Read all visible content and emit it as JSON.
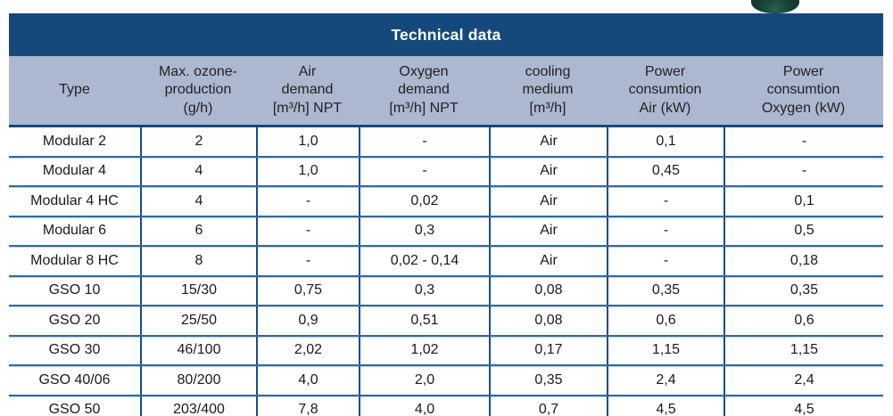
{
  "table": {
    "title": "Technical data",
    "column_headers": [
      "Type",
      "Max. ozone-\nproduction\n(g/h)",
      "Air\ndemand\n[m³/h] NPT",
      "Oxygen\ndemand\n[m³/h] NPT",
      "cooling\nmedium\n[m³/h]",
      "Power\nconsumtion\nAir (kW)",
      "Power\nconsumtion\nOxygen (kW)"
    ],
    "rows": [
      {
        "cells": [
          "Modular 2",
          "2",
          "1,0",
          "-",
          "Air",
          "0,1",
          "-"
        ]
      },
      {
        "cells": [
          "Modular 4",
          "4",
          "1,0",
          "-",
          "Air",
          "0,45",
          "-"
        ]
      },
      {
        "cells": [
          "Modular 4 HC",
          "4",
          "-",
          "0,02",
          "Air",
          "-",
          "0,1"
        ]
      },
      {
        "cells": [
          "Modular 6",
          "6",
          "-",
          "0,3",
          "Air",
          "-",
          "0,5"
        ]
      },
      {
        "cells": [
          "Modular 8 HC",
          "8",
          "-",
          "0,02 - 0,14",
          "Air",
          "-",
          "0,18"
        ]
      },
      {
        "cells": [
          "GSO 10",
          "15/30",
          "0,75",
          "0,3",
          "0,08",
          "0,35",
          "0,35"
        ]
      },
      {
        "cells": [
          "GSO 20",
          "25/50",
          "0,9",
          "0,51",
          "0,08",
          "0,6",
          "0,6"
        ]
      },
      {
        "cells": [
          "GSO 30",
          "46/100",
          "2,02",
          "1,02",
          "0,17",
          "1,15",
          "1,15"
        ]
      },
      {
        "cells": [
          "GSO 40/06",
          "80/200",
          "4,0",
          "2,0",
          "0,35",
          "2,4",
          "2,4"
        ]
      },
      {
        "cells": [
          "GSO 50",
          "203/400",
          "7,8",
          "4,0",
          "0,7",
          "4,5",
          "4,5"
        ]
      }
    ]
  },
  "colors": {
    "band_navy": "#15497B",
    "header_bg": "#ACB8D0",
    "row_separator_dark": "#36689A",
    "row_separator_light": "#BCD3E6",
    "column_border": "#1A4E80",
    "title_text": "#FFFFFF",
    "body_text": "#1A1A1A",
    "green_object": "#17413A"
  },
  "decor": {
    "green_object": "partial dark-green object cropped at top edge"
  }
}
